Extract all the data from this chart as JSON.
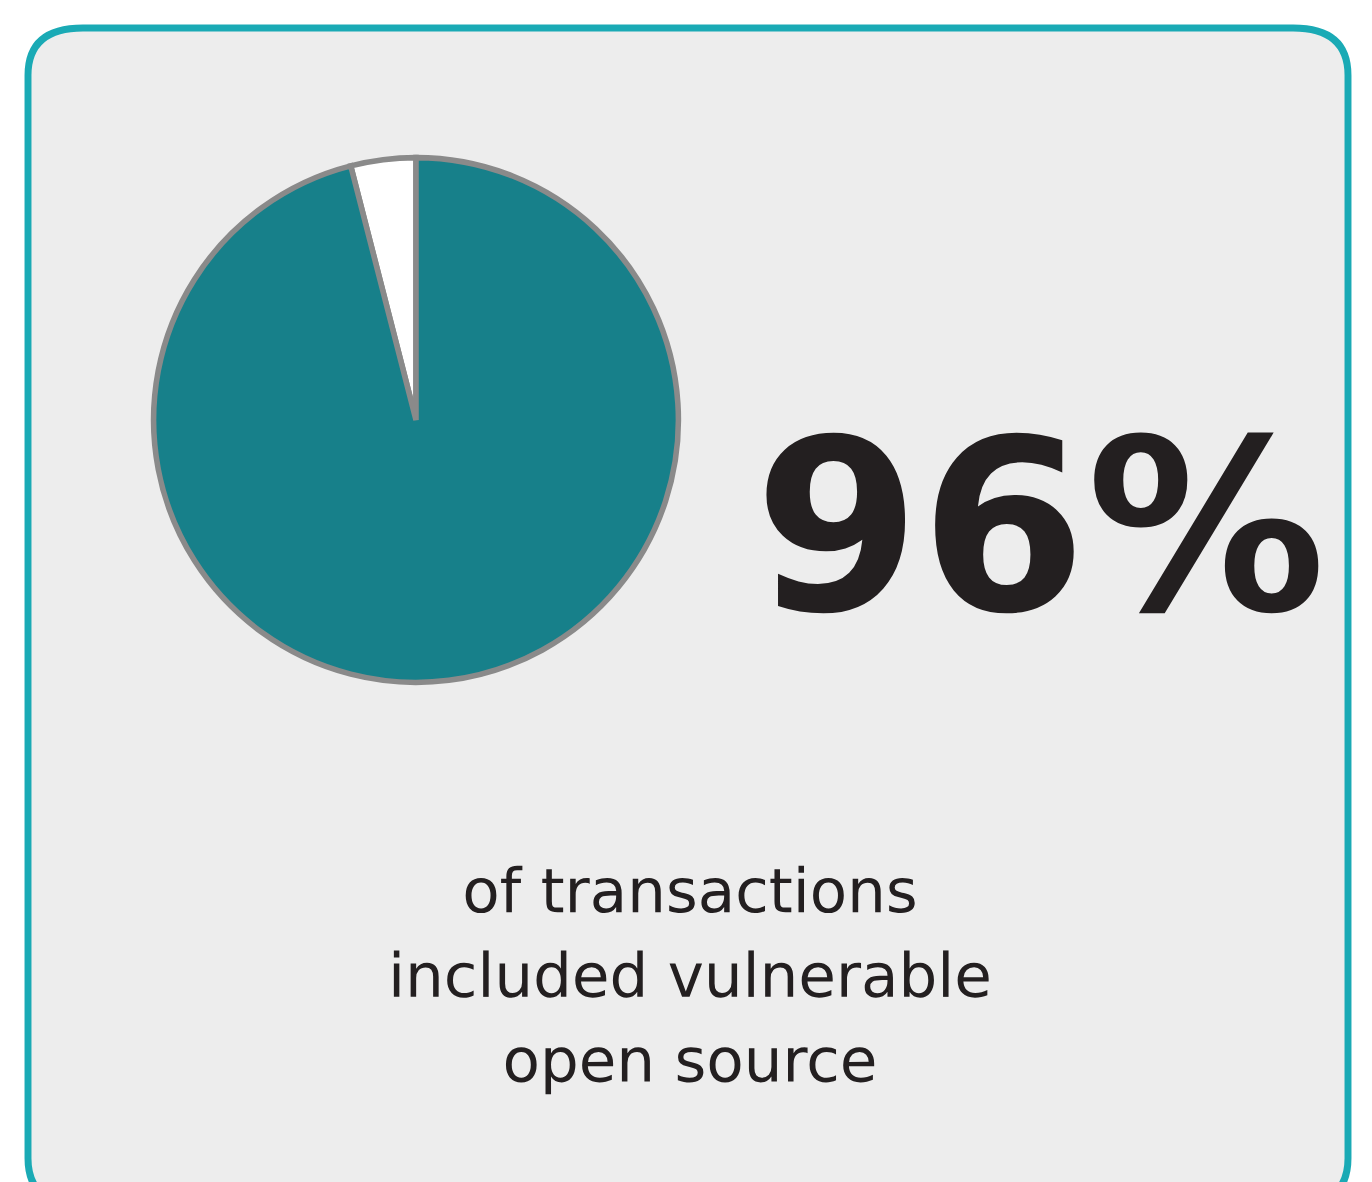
{
  "chart_data": {
    "type": "pie",
    "categories": [
      null,
      null
    ],
    "values": [
      4,
      96
    ],
    "colors": [
      "#ffffff",
      "#17808a"
    ],
    "value_labels": [
      null,
      "96%"
    ],
    "annotations": [
      "of transactions\nincluded vulnerable\nopen source"
    ]
  }
}
